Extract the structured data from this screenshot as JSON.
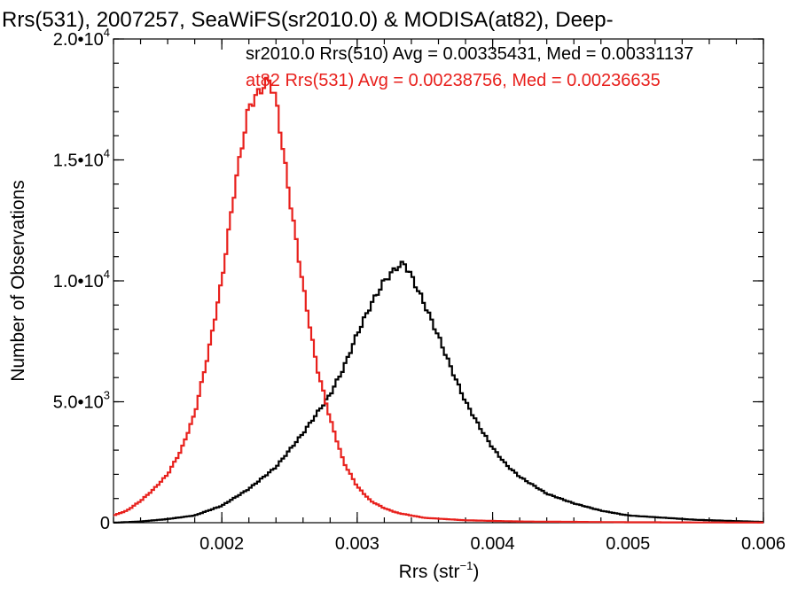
{
  "chart_data": {
    "type": "line",
    "style": "histogram-step",
    "title": "Rrs(531), 2007257, SeaWiFS(sr2010.0) & MODISA(at82), Deep-",
    "xlabel": "Rrs (str",
    "xlabel_sup": "−1",
    "xlabel_close": ")",
    "ylabel": "Number of Observations",
    "xlim": [
      0.0012,
      0.006
    ],
    "ylim": [
      0,
      20000
    ],
    "x_ticks": [
      {
        "value": 0.002,
        "label": "0.002"
      },
      {
        "value": 0.003,
        "label": "0.003"
      },
      {
        "value": 0.004,
        "label": "0.004"
      },
      {
        "value": 0.005,
        "label": "0.005"
      },
      {
        "value": 0.006,
        "label": "0.006"
      }
    ],
    "y_ticks": [
      {
        "value": 0,
        "mantissa": "0",
        "exp": ""
      },
      {
        "value": 5000,
        "mantissa": "5.0•10",
        "exp": "3"
      },
      {
        "value": 10000,
        "mantissa": "1.0•10",
        "exp": "4"
      },
      {
        "value": 15000,
        "mantissa": "1.5•10",
        "exp": "4"
      },
      {
        "value": 20000,
        "mantissa": "2.0•10",
        "exp": "4"
      }
    ],
    "legend_position": "top-right",
    "series": [
      {
        "name": "sr2010.0 Rrs(510) Avg = 0.00335431, Med = 0.00331137",
        "color": "#000000",
        "x": [
          0.0012,
          0.0014,
          0.0016,
          0.0018,
          0.002,
          0.0022,
          0.0024,
          0.0025,
          0.0026,
          0.0027,
          0.0028,
          0.0029,
          0.003,
          0.0031,
          0.0032,
          0.0033,
          0.00335,
          0.0034,
          0.0035,
          0.0036,
          0.0037,
          0.0038,
          0.0039,
          0.004,
          0.0041,
          0.0042,
          0.0044,
          0.0046,
          0.0048,
          0.005,
          0.0055,
          0.006
        ],
        "y": [
          0,
          50,
          150,
          300,
          700,
          1400,
          2300,
          3000,
          3700,
          4500,
          5300,
          6400,
          7800,
          9000,
          10000,
          10600,
          10700,
          10200,
          9000,
          7700,
          6300,
          5000,
          4000,
          3100,
          2400,
          1900,
          1200,
          800,
          500,
          300,
          120,
          30
        ]
      },
      {
        "name": "at82 Rrs(531) Avg = 0.00238756, Med = 0.00236635",
        "color": "#e8201c",
        "x": [
          0.0012,
          0.0013,
          0.0014,
          0.0015,
          0.0016,
          0.0017,
          0.0018,
          0.0019,
          0.002,
          0.0021,
          0.0022,
          0.0023,
          0.00235,
          0.0024,
          0.0025,
          0.0026,
          0.0027,
          0.0028,
          0.0029,
          0.003,
          0.0031,
          0.0032,
          0.0033,
          0.0035,
          0.0038,
          0.0042,
          0.005,
          0.006
        ],
        "y": [
          300,
          500,
          900,
          1400,
          2000,
          3000,
          4500,
          7000,
          10000,
          14000,
          17200,
          18000,
          18300,
          17500,
          13500,
          9800,
          6500,
          4300,
          2500,
          1500,
          900,
          600,
          400,
          200,
          100,
          50,
          20,
          5
        ]
      }
    ]
  }
}
